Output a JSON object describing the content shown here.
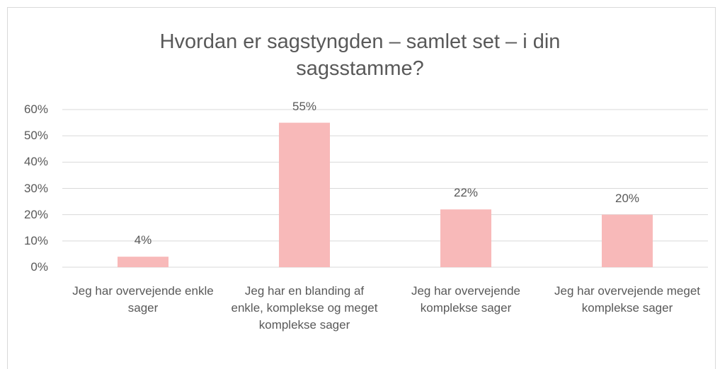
{
  "chart_data": {
    "type": "bar",
    "title": "Hvordan er sagstyngden – samlet set – i din sagsstamme?",
    "categories": [
      "Jeg har overvejende enkle sager",
      "Jeg har en blanding af enkle, komplekse og meget komplekse sager",
      "Jeg har overvejende komplekse sager",
      "Jeg har overvejende meget komplekse sager"
    ],
    "values": [
      4,
      55,
      22,
      20
    ],
    "value_labels": [
      "4%",
      "55%",
      "22%",
      "20%"
    ],
    "color": "#f8b9b9",
    "ylim": [
      0,
      60
    ],
    "yticks": [
      {
        "value": 0,
        "label": "0%"
      },
      {
        "value": 10,
        "label": "10%"
      },
      {
        "value": 20,
        "label": "20%"
      },
      {
        "value": 30,
        "label": "30%"
      },
      {
        "value": 40,
        "label": "40%"
      },
      {
        "value": 50,
        "label": "50%"
      },
      {
        "value": 60,
        "label": "60%"
      }
    ],
    "grid": true
  }
}
